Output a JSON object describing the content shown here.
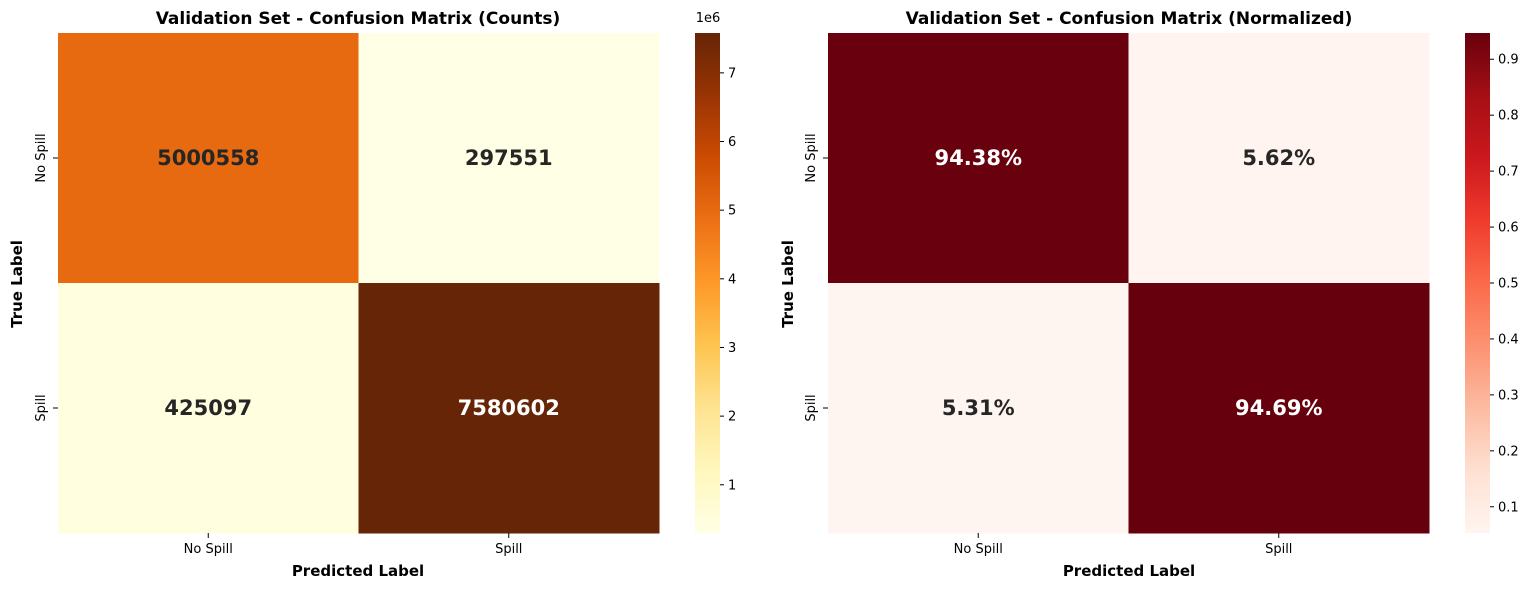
{
  "chart_data": [
    {
      "type": "heatmap",
      "title": "Validation Set - Confusion Matrix (Counts)",
      "xlabel": "Predicted Label",
      "ylabel": "True Label",
      "x_categories": [
        "No Spill",
        "Spill"
      ],
      "y_categories": [
        "No Spill",
        "Spill"
      ],
      "values": [
        [
          5000558,
          297551
        ],
        [
          425097,
          7580602
        ]
      ],
      "cell_labels": [
        [
          "5000558",
          "297551"
        ],
        [
          "425097",
          "7580602"
        ]
      ],
      "colormap": "YlOrBr",
      "colorbar": {
        "range": [
          297551,
          7580602
        ],
        "ticks": [
          1,
          2,
          3,
          4,
          5,
          6,
          7
        ],
        "tick_labels": [
          "1",
          "2",
          "3",
          "4",
          "5",
          "6",
          "7"
        ],
        "scale_label": "1e6"
      }
    },
    {
      "type": "heatmap",
      "title": "Validation Set - Confusion Matrix (Normalized)",
      "xlabel": "Predicted Label",
      "ylabel": "True Label",
      "x_categories": [
        "No Spill",
        "Spill"
      ],
      "y_categories": [
        "No Spill",
        "Spill"
      ],
      "values": [
        [
          0.9438,
          0.0562
        ],
        [
          0.0531,
          0.9469
        ]
      ],
      "cell_labels": [
        [
          "94.38%",
          "5.62%"
        ],
        [
          "5.31%",
          "94.69%"
        ]
      ],
      "colormap": "Reds",
      "colorbar": {
        "range": [
          0.0531,
          0.9469
        ],
        "ticks": [
          0.1,
          0.2,
          0.3,
          0.4,
          0.5,
          0.6,
          0.7,
          0.8,
          0.9
        ],
        "tick_labels": [
          "0.1",
          "0.2",
          "0.3",
          "0.4",
          "0.5",
          "0.6",
          "0.7",
          "0.8",
          "0.9"
        ],
        "scale_label": ""
      }
    }
  ]
}
